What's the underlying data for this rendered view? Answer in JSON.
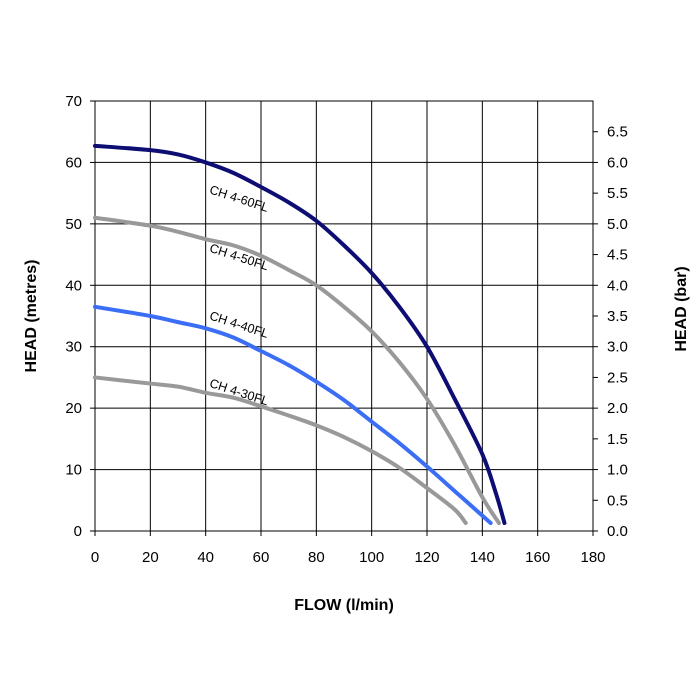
{
  "chart_data": {
    "type": "line",
    "xlabel": "FLOW (l/min)",
    "ylabel": "HEAD (metres)",
    "y2label": "HEAD (bar)",
    "xlim": [
      0,
      180
    ],
    "ylim": [
      0,
      70
    ],
    "y2lim": [
      0,
      7
    ],
    "x_ticks": [
      "0",
      "20",
      "40",
      "60",
      "80",
      "100",
      "120",
      "140",
      "160",
      "180"
    ],
    "y_ticks": [
      "0",
      "10",
      "20",
      "30",
      "40",
      "50",
      "60",
      "70"
    ],
    "y2_ticks": [
      "0.0",
      "0.5",
      "1.0",
      "1.5",
      "2.0",
      "2.5",
      "3.0",
      "3.5",
      "4.0",
      "4.5",
      "5.0",
      "5.5",
      "6.0",
      "6.5"
    ],
    "grid": true,
    "series": [
      {
        "name": "CH 4-60FL",
        "color": "#0d0d73",
        "label_at": [
          40,
          55
        ],
        "x": [
          0,
          20,
          30,
          40,
          50,
          60,
          70,
          80,
          90,
          100,
          110,
          120,
          130,
          140,
          145,
          148
        ],
        "y": [
          62.7,
          62.0,
          61.3,
          60.0,
          58.3,
          56.0,
          53.5,
          50.5,
          46.5,
          42.0,
          36.5,
          30.0,
          21.5,
          12.5,
          6.0,
          1.3
        ]
      },
      {
        "name": "CH 4-50FL",
        "color": "#999999",
        "label_at": [
          40,
          45.5
        ],
        "x": [
          0,
          20,
          30,
          40,
          50,
          60,
          70,
          80,
          90,
          100,
          110,
          120,
          130,
          140,
          146
        ],
        "y": [
          51.0,
          49.7,
          48.7,
          47.5,
          46.5,
          44.8,
          42.5,
          40.0,
          36.5,
          32.5,
          27.5,
          21.5,
          14.0,
          5.5,
          1.3
        ]
      },
      {
        "name": "CH 4-40FL",
        "color": "#3b6ef5",
        "label_at": [
          40,
          34.5
        ],
        "x": [
          0,
          20,
          30,
          40,
          50,
          60,
          70,
          80,
          90,
          100,
          110,
          120,
          130,
          140,
          143
        ],
        "y": [
          36.5,
          35.0,
          34.0,
          33.0,
          31.5,
          29.3,
          27.0,
          24.3,
          21.3,
          17.8,
          14.3,
          10.5,
          6.5,
          2.5,
          1.3
        ]
      },
      {
        "name": "CH 4-30FL",
        "color": "#999999",
        "label_at": [
          40,
          23.5
        ],
        "x": [
          0,
          20,
          30,
          40,
          50,
          60,
          70,
          80,
          90,
          100,
          110,
          120,
          130,
          134
        ],
        "y": [
          25.0,
          24.0,
          23.5,
          22.5,
          21.7,
          20.3,
          18.8,
          17.2,
          15.3,
          13.0,
          10.3,
          7.0,
          3.5,
          1.3
        ]
      }
    ]
  }
}
